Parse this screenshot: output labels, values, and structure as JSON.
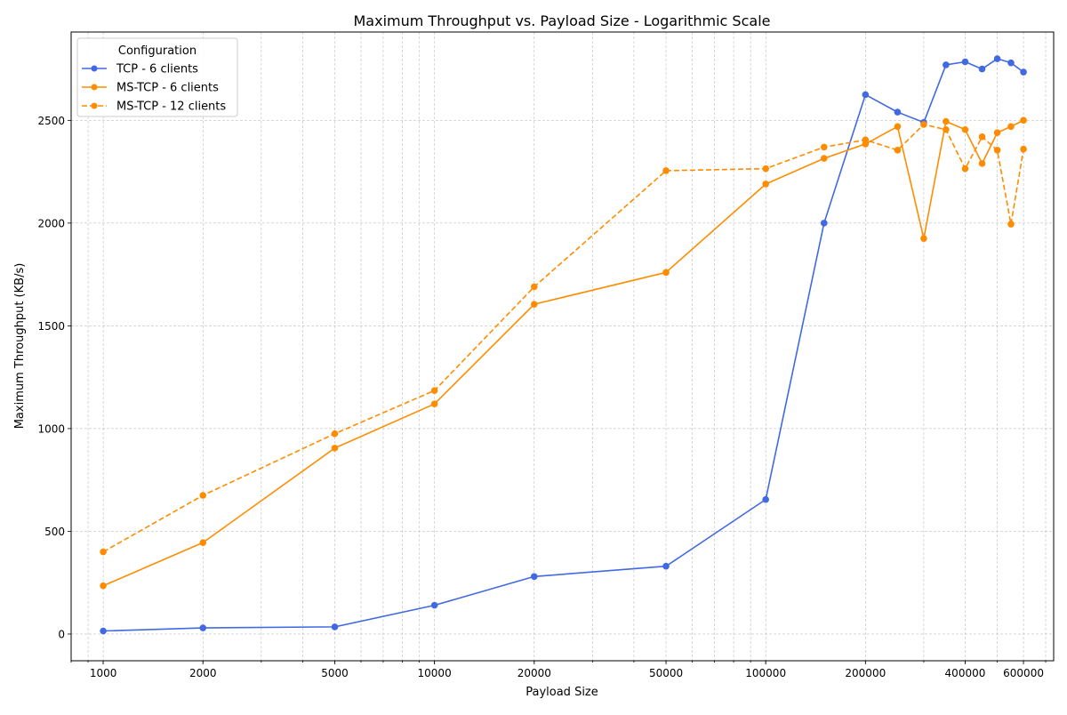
{
  "chart_data": {
    "type": "line",
    "title": "Maximum Throughput vs. Payload Size - Logarithmic Scale",
    "xlabel": "Payload Size",
    "ylabel": "Maximum Throughput (KB/s)",
    "x_scale": "log",
    "xlim": [
      800,
      740000
    ],
    "ylim": [
      -130,
      2930
    ],
    "x_ticks": [
      1000,
      2000,
      5000,
      10000,
      20000,
      50000,
      100000,
      200000,
      400000,
      600000
    ],
    "x_tick_labels": [
      "1000",
      "2000",
      "5000",
      "10000",
      "20000",
      "50000",
      "100000",
      "200000",
      "400000",
      "600000"
    ],
    "y_ticks": [
      0,
      500,
      1000,
      1500,
      2000,
      2500
    ],
    "y_tick_labels": [
      "0",
      "500",
      "1000",
      "1500",
      "2000",
      "2500"
    ],
    "grid": "both (major and minor), dashed",
    "legend": {
      "title": "Configuration",
      "placement": "top-left"
    },
    "series": [
      {
        "name": "TCP - 6 clients",
        "color": "#4169e1",
        "linestyle": "solid",
        "points": [
          [
            1000,
            15
          ],
          [
            2000,
            30
          ],
          [
            5000,
            35
          ],
          [
            10000,
            140
          ],
          [
            20000,
            280
          ],
          [
            50000,
            330
          ],
          [
            100000,
            655
          ],
          [
            150000,
            2000
          ],
          [
            200000,
            2625
          ],
          [
            250000,
            2540
          ],
          [
            300000,
            2490
          ],
          [
            350000,
            2770
          ],
          [
            400000,
            2785
          ],
          [
            450000,
            2750
          ],
          [
            500000,
            2800
          ],
          [
            550000,
            2780
          ],
          [
            600000,
            2735
          ]
        ]
      },
      {
        "name": "MS-TCP - 6 clients",
        "color": "#ff8c00",
        "linestyle": "solid",
        "points": [
          [
            1000,
            235
          ],
          [
            2000,
            445
          ],
          [
            5000,
            905
          ],
          [
            10000,
            1120
          ],
          [
            20000,
            1605
          ],
          [
            50000,
            1760
          ],
          [
            100000,
            2190
          ],
          [
            150000,
            2315
          ],
          [
            200000,
            2385
          ],
          [
            250000,
            2470
          ],
          [
            300000,
            1925
          ],
          [
            350000,
            2495
          ],
          [
            400000,
            2455
          ],
          [
            450000,
            2290
          ],
          [
            500000,
            2440
          ],
          [
            550000,
            2470
          ],
          [
            600000,
            2500
          ]
        ]
      },
      {
        "name": "MS-TCP - 12 clients",
        "color": "#ff8c00",
        "linestyle": "dashed",
        "points": [
          [
            1000,
            400
          ],
          [
            2000,
            675
          ],
          [
            5000,
            975
          ],
          [
            10000,
            1185
          ],
          [
            20000,
            1690
          ],
          [
            50000,
            2255
          ],
          [
            100000,
            2265
          ],
          [
            150000,
            2370
          ],
          [
            200000,
            2405
          ],
          [
            250000,
            2355
          ],
          [
            300000,
            2480
          ],
          [
            350000,
            2455
          ],
          [
            400000,
            2265
          ],
          [
            450000,
            2420
          ],
          [
            500000,
            2355
          ],
          [
            550000,
            1995
          ],
          [
            600000,
            2360
          ]
        ]
      }
    ]
  }
}
